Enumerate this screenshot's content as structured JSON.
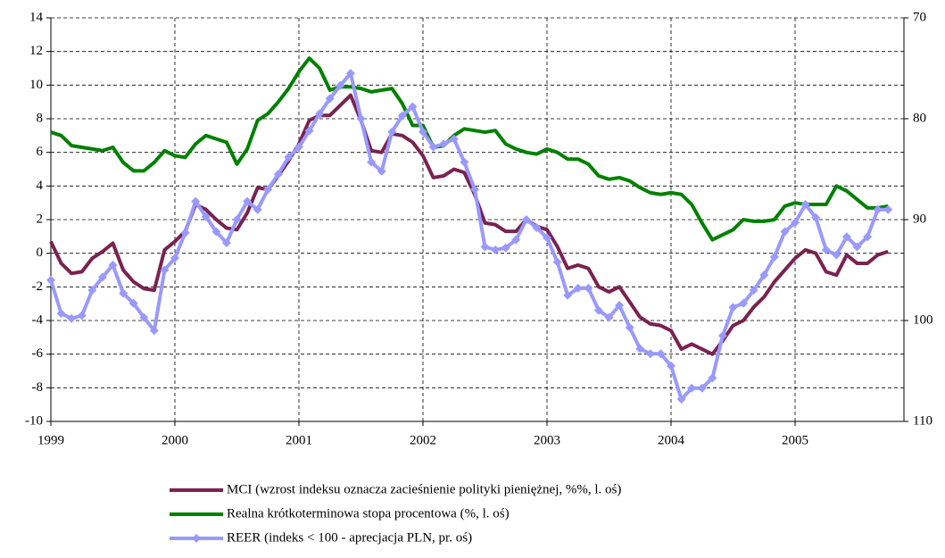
{
  "chart_data": {
    "type": "line",
    "categories": [
      "1999",
      null,
      null,
      null,
      null,
      null,
      null,
      null,
      null,
      null,
      null,
      null,
      "2000",
      null,
      null,
      null,
      null,
      null,
      null,
      null,
      null,
      null,
      null,
      null,
      "2001",
      null,
      null,
      null,
      null,
      null,
      null,
      null,
      null,
      null,
      null,
      null,
      "2002",
      null,
      null,
      null,
      null,
      null,
      null,
      null,
      null,
      null,
      null,
      null,
      "2003",
      null,
      null,
      null,
      null,
      null,
      null,
      null,
      null,
      null,
      null,
      null,
      "2004",
      null,
      null,
      null,
      null,
      null,
      null,
      null,
      null,
      null,
      null,
      null,
      "2005",
      null,
      null,
      null,
      null,
      null,
      null,
      null,
      null,
      null
    ],
    "series": [
      {
        "name": "MCI (wzrost indeksu oznacza zacieśnienie polityki pieniężnej, %%, l. oś)",
        "color": "#7a2250",
        "values": [
          0.7,
          -0.6,
          -1.2,
          -1.1,
          -0.3,
          0.1,
          0.6,
          -1.0,
          -1.7,
          -2.1,
          -2.2,
          0.2,
          0.7,
          1.3,
          2.9,
          2.6,
          2.0,
          1.5,
          1.4,
          2.4,
          3.9,
          3.8,
          4.6,
          5.5,
          6.5,
          7.9,
          8.2,
          8.2,
          8.8,
          9.4,
          7.9,
          6.1,
          6.0,
          7.1,
          7.0,
          6.6,
          5.8,
          4.5,
          4.6,
          5.0,
          4.8,
          3.5,
          1.8,
          1.7,
          1.3,
          1.3,
          2.0,
          1.6,
          1.4,
          0.4,
          -0.9,
          -0.7,
          -0.9,
          -2.0,
          -2.3,
          -2.0,
          -2.9,
          -3.8,
          -4.2,
          -4.3,
          -4.6,
          -5.7,
          -5.4,
          -5.7,
          -6.0,
          -5.2,
          -4.3,
          -4.0,
          -3.2,
          -2.6,
          -1.7,
          -1.0,
          -0.3,
          0.2,
          0.0,
          -1.1,
          -1.3,
          -0.1,
          -0.6,
          -0.6,
          -0.1,
          0.1
        ]
      },
      {
        "name": "Realna krótkoterminowa stopa procentowa (%, l. oś)",
        "color": "#008000",
        "values": [
          7.2,
          7.0,
          6.4,
          6.3,
          6.2,
          6.1,
          6.3,
          5.4,
          4.9,
          4.9,
          5.4,
          6.1,
          5.8,
          5.7,
          6.5,
          7.0,
          6.8,
          6.6,
          5.3,
          6.2,
          7.9,
          8.3,
          9.0,
          9.8,
          10.8,
          11.6,
          11.0,
          9.7,
          9.9,
          9.9,
          9.8,
          9.6,
          9.7,
          9.8,
          8.9,
          7.6,
          7.6,
          6.3,
          6.4,
          7.0,
          7.4,
          7.3,
          7.2,
          7.3,
          6.5,
          6.2,
          6.0,
          5.9,
          6.2,
          6.0,
          5.6,
          5.6,
          5.3,
          4.6,
          4.4,
          4.5,
          4.3,
          3.9,
          3.6,
          3.5,
          3.6,
          3.5,
          2.9,
          1.8,
          0.8,
          1.1,
          1.4,
          2.0,
          1.9,
          1.9,
          2.0,
          2.8,
          3.0,
          2.9,
          2.9,
          2.9,
          4.0,
          3.7,
          3.2,
          2.7,
          2.7,
          2.8
        ]
      },
      {
        "name": "REER (indeks < 100 - aprecjacja PLN, pr. oś)",
        "color": "#9999ff",
        "axis": "y2",
        "marker": "diamond",
        "values": [
          96.0,
          99.3,
          99.8,
          99.5,
          97.0,
          95.7,
          94.5,
          97.3,
          98.3,
          99.7,
          101.0,
          95.0,
          93.8,
          91.3,
          88.2,
          89.7,
          91.2,
          92.3,
          90.0,
          88.2,
          89.0,
          87.0,
          85.5,
          83.8,
          82.8,
          81.2,
          79.5,
          78.0,
          76.7,
          75.5,
          80.0,
          84.3,
          85.2,
          81.3,
          79.7,
          78.8,
          81.3,
          82.8,
          82.5,
          82.0,
          84.3,
          87.0,
          92.7,
          93.0,
          92.8,
          92.0,
          90.0,
          90.8,
          91.8,
          94.2,
          97.5,
          96.8,
          96.8,
          99.0,
          99.7,
          98.5,
          100.7,
          102.8,
          103.3,
          103.3,
          104.5,
          107.8,
          106.7,
          106.7,
          105.7,
          101.5,
          98.7,
          98.3,
          97.0,
          95.5,
          93.7,
          91.2,
          90.3,
          88.5,
          89.8,
          93.0,
          93.5,
          91.7,
          92.7,
          91.7,
          89.0,
          89.0
        ]
      }
    ],
    "ylim": [
      -10,
      14
    ],
    "yticks": [
      -10,
      -8,
      -6,
      -4,
      -2,
      0,
      2,
      4,
      6,
      8,
      10,
      12,
      14
    ],
    "y2lim": [
      110,
      70
    ],
    "y2ticks": [
      70,
      80,
      90,
      100,
      110
    ],
    "grid": true
  }
}
